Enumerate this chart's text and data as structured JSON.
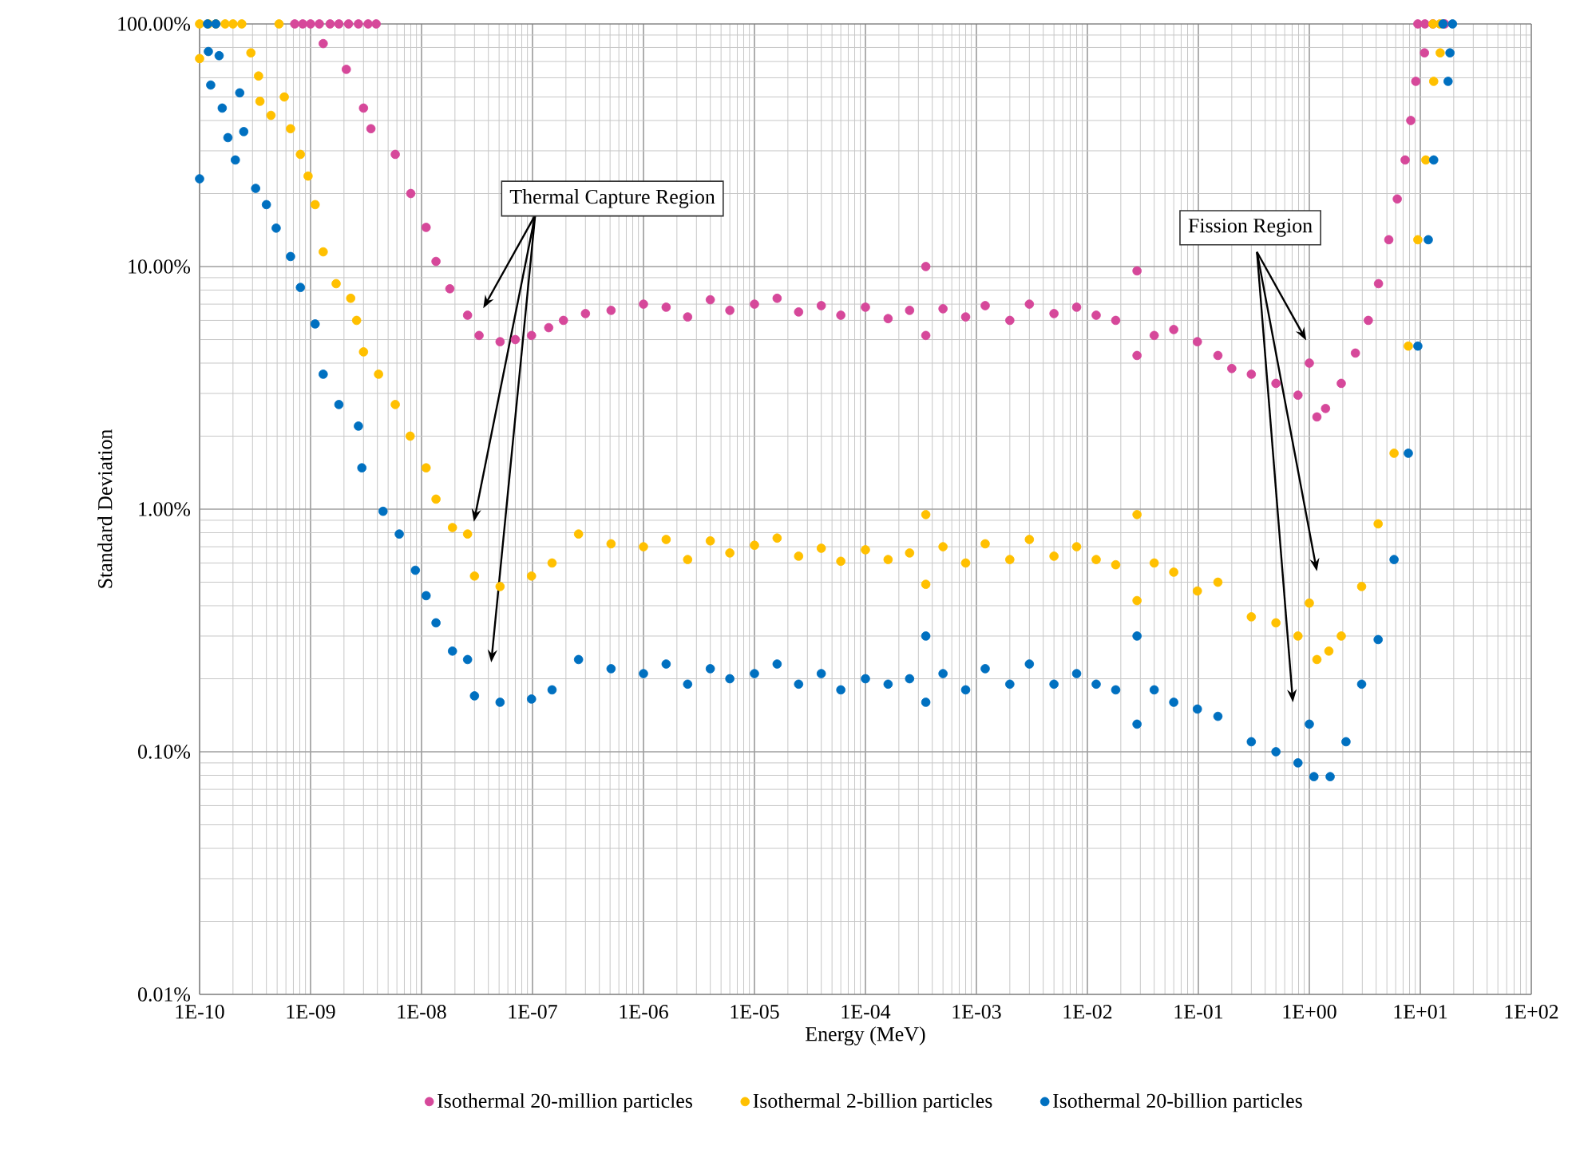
{
  "chart_data": {
    "type": "scatter",
    "xlabel": "Energy (MeV)",
    "ylabel": "Standard Deviation",
    "log": "xy",
    "grid": true,
    "legend": "bottom",
    "xlim": [
      1e-10,
      100
    ],
    "ylim": [
      0.01,
      100
    ],
    "xticks": [
      {
        "value": 1e-10,
        "label": "1E-10"
      },
      {
        "value": 1e-09,
        "label": "1E-09"
      },
      {
        "value": 1e-08,
        "label": "1E-08"
      },
      {
        "value": 1e-07,
        "label": "1E-07"
      },
      {
        "value": 1e-06,
        "label": "1E-06"
      },
      {
        "value": 1e-05,
        "label": "1E-05"
      },
      {
        "value": 0.0001,
        "label": "1E-04"
      },
      {
        "value": 0.001,
        "label": "1E-03"
      },
      {
        "value": 0.01,
        "label": "1E-02"
      },
      {
        "value": 0.1,
        "label": "1E-01"
      },
      {
        "value": 1,
        "label": "1E+00"
      },
      {
        "value": 10,
        "label": "1E+01"
      },
      {
        "value": 100,
        "label": "1E+02"
      }
    ],
    "yticks": [
      {
        "value": 0.01,
        "label": "0.01%"
      },
      {
        "value": 0.1,
        "label": "0.10%"
      },
      {
        "value": 1,
        "label": "1.00%"
      },
      {
        "value": 10,
        "label": "10.00%"
      },
      {
        "value": 100,
        "label": "100.00%"
      }
    ],
    "annotations": [
      "Thermal Capture Region",
      "Fission Region"
    ],
    "series": [
      {
        "name": "Isothermal 20-million particles",
        "color": "#d6489a",
        "x": [
          7.2e-10,
          8.5e-10,
          1e-09,
          1.2e-09,
          1.5e-09,
          1.8e-09,
          2.2e-09,
          2.7e-09,
          3.3e-09,
          3.9e-09,
          1.3e-09,
          2.1e-09,
          3e-09,
          3.5e-09,
          5.8e-09,
          8e-09,
          1.1e-08,
          1.35e-08,
          1.8e-08,
          2.6e-08,
          3.3e-08,
          5.1e-08,
          7e-08,
          9.8e-08,
          1.4e-07,
          1.9e-07,
          3e-07,
          5.1e-07,
          1e-06,
          1.6e-06,
          2.5e-06,
          4e-06,
          6e-06,
          1e-05,
          1.6e-05,
          2.5e-05,
          4e-05,
          6e-05,
          0.0001,
          0.00016,
          0.00025,
          0.00035,
          0.00035,
          0.0005,
          0.0008,
          0.0012,
          0.002,
          0.003,
          0.005,
          0.008,
          0.012,
          0.018,
          0.028,
          0.028,
          0.04,
          0.06,
          0.098,
          0.15,
          0.2,
          0.3,
          0.5,
          0.79,
          1.0,
          1.17,
          1.4,
          1.94,
          2.6,
          3.4,
          4.2,
          5.2,
          6.2,
          7.3,
          8.2,
          9.1,
          10.9,
          9.5,
          11,
          13,
          16.6
        ],
        "values": [
          100,
          100,
          100,
          100,
          100,
          100,
          100,
          100,
          100,
          100,
          83,
          65,
          45,
          37,
          29,
          20,
          14.5,
          10.5,
          8.1,
          6.3,
          5.2,
          4.9,
          5.0,
          5.2,
          5.6,
          6.0,
          6.4,
          6.6,
          7.0,
          6.8,
          6.2,
          7.3,
          6.6,
          7.0,
          7.4,
          6.5,
          6.9,
          6.3,
          6.8,
          6.1,
          6.6,
          10,
          5.2,
          6.7,
          6.2,
          6.9,
          6.0,
          7.0,
          6.4,
          6.8,
          6.3,
          6.0,
          9.6,
          4.3,
          5.2,
          5.5,
          4.9,
          4.3,
          3.8,
          3.6,
          3.3,
          2.95,
          4.0,
          2.4,
          2.6,
          3.3,
          4.4,
          6.0,
          8.5,
          12.9,
          19,
          27.5,
          40,
          58,
          76,
          100,
          100,
          100,
          100
        ]
      },
      {
        "name": "Isothermal 2-billion particles",
        "color": "#ffc000",
        "x": [
          1e-10,
          1.2e-10,
          1.4e-10,
          1.7e-10,
          2e-10,
          2.4e-10,
          5.2e-10,
          1e-10,
          2.9e-10,
          3.4e-10,
          3.5e-10,
          4.4e-10,
          5.8e-10,
          6.6e-10,
          8.1e-10,
          9.5e-10,
          1.1e-09,
          1.3e-09,
          1.7e-09,
          2.3e-09,
          2.6e-09,
          3e-09,
          4.1e-09,
          5.8e-09,
          7.9e-09,
          1.1e-08,
          1.35e-08,
          1.9e-08,
          2.6e-08,
          3e-08,
          5.1e-08,
          9.8e-08,
          1.5e-07,
          2.6e-07,
          5.1e-07,
          1e-06,
          1.6e-06,
          2.5e-06,
          4e-06,
          6e-06,
          1e-05,
          1.6e-05,
          2.5e-05,
          4e-05,
          6e-05,
          0.0001,
          0.00016,
          0.00025,
          0.00035,
          0.00035,
          0.0005,
          0.0008,
          0.0012,
          0.002,
          0.003,
          0.005,
          0.008,
          0.012,
          0.018,
          0.028,
          0.028,
          0.04,
          0.06,
          0.098,
          0.15,
          0.3,
          0.5,
          0.79,
          1.0,
          1.17,
          1.5,
          1.94,
          2.96,
          4.17,
          5.8,
          7.8,
          9.5,
          11.2,
          13.2,
          15.1,
          13,
          15
        ],
        "values": [
          100,
          100,
          100,
          100,
          100,
          100,
          100,
          72,
          76,
          61,
          48,
          42,
          50,
          37,
          29,
          23.6,
          18,
          11.5,
          8.5,
          7.4,
          6.0,
          4.45,
          3.6,
          2.7,
          2.0,
          1.48,
          1.1,
          0.84,
          0.79,
          0.53,
          0.48,
          0.53,
          0.6,
          0.79,
          0.72,
          0.7,
          0.75,
          0.62,
          0.74,
          0.66,
          0.71,
          0.76,
          0.64,
          0.69,
          0.61,
          0.68,
          0.62,
          0.66,
          0.95,
          0.49,
          0.7,
          0.6,
          0.72,
          0.62,
          0.75,
          0.64,
          0.7,
          0.62,
          0.59,
          0.95,
          0.42,
          0.6,
          0.55,
          0.46,
          0.5,
          0.36,
          0.34,
          0.3,
          0.41,
          0.24,
          0.26,
          0.3,
          0.48,
          0.87,
          1.7,
          4.7,
          12.9,
          27.5,
          58,
          76,
          100,
          100
        ]
      },
      {
        "name": "Isothermal 20-billion particles",
        "color": "#0070c0",
        "x": [
          1.18e-10,
          1.4e-10,
          1e-10,
          1.2e-10,
          1.5e-10,
          1.26e-10,
          1.6e-10,
          1.8e-10,
          2.3e-10,
          2.5e-10,
          2.1e-10,
          3.2e-10,
          4e-10,
          4.9e-10,
          6.6e-10,
          8.1e-10,
          1.1e-09,
          1.3e-09,
          1.8e-09,
          2.7e-09,
          2.9e-09,
          4.5e-09,
          6.3e-09,
          8.8e-09,
          1.1e-08,
          1.35e-08,
          1.9e-08,
          2.6e-08,
          3e-08,
          5.1e-08,
          9.8e-08,
          1.5e-07,
          2.6e-07,
          5.1e-07,
          1e-06,
          1.6e-06,
          2.5e-06,
          4e-06,
          6e-06,
          1e-05,
          1.6e-05,
          2.5e-05,
          4e-05,
          6e-05,
          0.0001,
          0.00016,
          0.00025,
          0.00035,
          0.00035,
          0.0005,
          0.0008,
          0.0012,
          0.002,
          0.003,
          0.005,
          0.008,
          0.012,
          0.018,
          0.028,
          0.028,
          0.04,
          0.06,
          0.098,
          0.15,
          0.3,
          0.5,
          0.79,
          1.0,
          1.1,
          1.54,
          2.14,
          2.96,
          4.17,
          5.8,
          7.8,
          9.5,
          11.8,
          13.2,
          17.8,
          18.5,
          16,
          19.5
        ],
        "values": [
          100,
          100,
          23,
          77,
          74,
          56,
          45,
          34,
          52,
          36,
          27.5,
          21,
          18,
          14.4,
          11,
          8.2,
          5.8,
          3.6,
          2.7,
          2.2,
          1.48,
          0.98,
          0.79,
          0.56,
          0.44,
          0.34,
          0.26,
          0.24,
          0.17,
          0.16,
          0.165,
          0.18,
          0.24,
          0.22,
          0.21,
          0.23,
          0.19,
          0.22,
          0.2,
          0.21,
          0.23,
          0.19,
          0.21,
          0.18,
          0.2,
          0.19,
          0.2,
          0.3,
          0.16,
          0.21,
          0.18,
          0.22,
          0.19,
          0.23,
          0.19,
          0.21,
          0.19,
          0.18,
          0.3,
          0.13,
          0.18,
          0.16,
          0.15,
          0.14,
          0.11,
          0.1,
          0.09,
          0.13,
          0.079,
          0.079,
          0.11,
          0.19,
          0.29,
          0.62,
          1.7,
          4.7,
          12.9,
          27.5,
          58,
          76,
          100,
          100
        ]
      }
    ]
  }
}
